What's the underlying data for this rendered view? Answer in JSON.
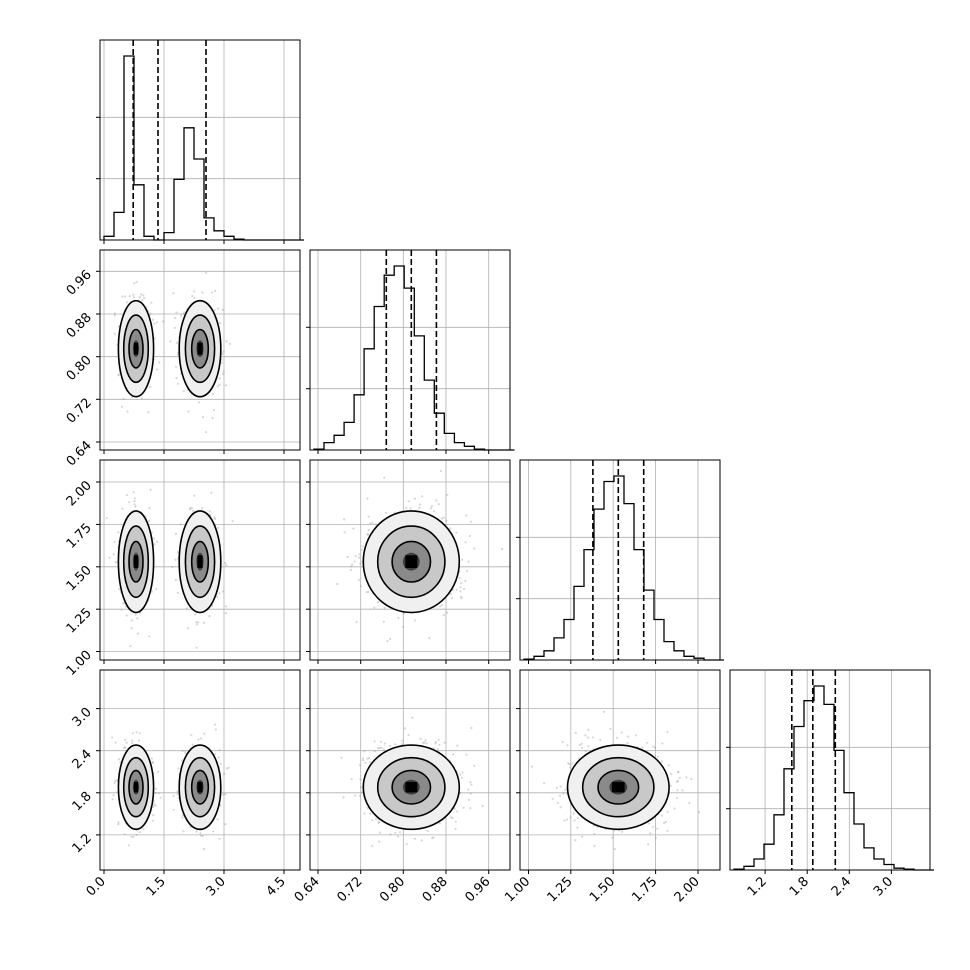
{
  "chart_data": {
    "type": "corner",
    "n_params": 4,
    "grid": true,
    "params": [
      {
        "index": 0,
        "range": [
          -0.1,
          4.9
        ],
        "tick_values": [
          0.0,
          1.5,
          3.0,
          4.5
        ],
        "tick_labels": [
          "0.0",
          "1.5",
          "3.0",
          "4.5"
        ],
        "quantiles": [
          0.73,
          1.35,
          2.55
        ],
        "modes": [
          {
            "mean": 0.8,
            "sd": 0.22,
            "weight": 0.5
          },
          {
            "mean": 2.4,
            "sd": 0.26,
            "weight": 0.5
          }
        ],
        "hist_bin_width": 0.25,
        "hist_heights": [
          0.02,
          0.15,
          1.0,
          0.3,
          0.02,
          0.0,
          0.04,
          0.33,
          0.61,
          0.44,
          0.12,
          0.05,
          0.02,
          0.005,
          0.0,
          0.0,
          0.0,
          0.0,
          0.0,
          0.0
        ]
      },
      {
        "index": 1,
        "range": [
          0.625,
          1.0
        ],
        "tick_values": [
          0.64,
          0.72,
          0.8,
          0.88,
          0.96
        ],
        "tick_labels": [
          "0.64",
          "0.72",
          "0.80",
          "0.88",
          "0.96"
        ],
        "quantiles": [
          0.768,
          0.815,
          0.862
        ],
        "modes": [
          {
            "mean": 0.815,
            "sd": 0.045,
            "weight": 1.0
          }
        ],
        "hist_bin_width": 0.0188,
        "hist_heights": [
          0.005,
          0.04,
          0.08,
          0.15,
          0.3,
          0.55,
          0.78,
          0.95,
          1.0,
          0.88,
          0.62,
          0.38,
          0.2,
          0.09,
          0.04,
          0.02,
          0.005,
          0.0,
          0.0,
          0.0
        ]
      },
      {
        "index": 2,
        "range": [
          0.95,
          2.13
        ],
        "tick_values": [
          1.0,
          1.25,
          1.5,
          1.75,
          2.0
        ],
        "tick_labels": [
          "1.00",
          "1.25",
          "1.50",
          "1.75",
          "2.00"
        ],
        "quantiles": [
          1.38,
          1.53,
          1.68
        ],
        "modes": [
          {
            "mean": 1.53,
            "sd": 0.15,
            "weight": 1.0
          }
        ],
        "hist_bin_width": 0.059,
        "hist_heights": [
          0.005,
          0.02,
          0.05,
          0.12,
          0.22,
          0.4,
          0.6,
          0.82,
          0.97,
          1.0,
          0.85,
          0.6,
          0.38,
          0.22,
          0.1,
          0.05,
          0.02,
          0.01,
          0.0,
          0.0
        ]
      },
      {
        "index": 3,
        "range": [
          0.7,
          3.55
        ],
        "tick_values": [
          1.2,
          1.8,
          2.4,
          3.0
        ],
        "tick_labels": [
          "1.2",
          "1.8",
          "2.4",
          "3.0"
        ],
        "quantiles": [
          1.58,
          1.88,
          2.2
        ],
        "modes": [
          {
            "mean": 1.88,
            "sd": 0.3,
            "weight": 1.0
          }
        ],
        "hist_bin_width": 0.1425,
        "hist_heights": [
          0.005,
          0.02,
          0.06,
          0.14,
          0.3,
          0.55,
          0.78,
          0.92,
          1.0,
          0.9,
          0.65,
          0.42,
          0.25,
          0.12,
          0.06,
          0.03,
          0.01,
          0.005,
          0.0,
          0.0
        ]
      }
    ]
  }
}
